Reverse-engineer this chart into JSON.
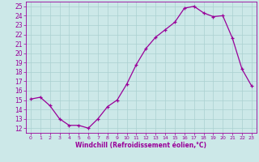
{
  "x": [
    0,
    1,
    2,
    3,
    4,
    5,
    6,
    7,
    8,
    9,
    10,
    11,
    12,
    13,
    14,
    15,
    16,
    17,
    18,
    19,
    20,
    21,
    22,
    23
  ],
  "y": [
    15.1,
    15.3,
    14.4,
    13.0,
    12.3,
    12.3,
    12.0,
    13.0,
    14.3,
    15.0,
    16.7,
    18.8,
    20.5,
    21.7,
    22.5,
    23.3,
    24.8,
    25.0,
    24.3,
    23.9,
    24.0,
    21.6,
    18.3,
    16.5
  ],
  "line_color": "#990099",
  "bg_color": "#cce8e8",
  "grid_color": "#aad0d0",
  "xlabel": "Windchill (Refroidissement éolien,°C)",
  "ylabel_ticks": [
    12,
    13,
    14,
    15,
    16,
    17,
    18,
    19,
    20,
    21,
    22,
    23,
    24,
    25
  ],
  "ylim": [
    11.5,
    25.5
  ],
  "xlim": [
    -0.5,
    23.5
  ],
  "xlabel_color": "#990099",
  "tick_color": "#990099"
}
